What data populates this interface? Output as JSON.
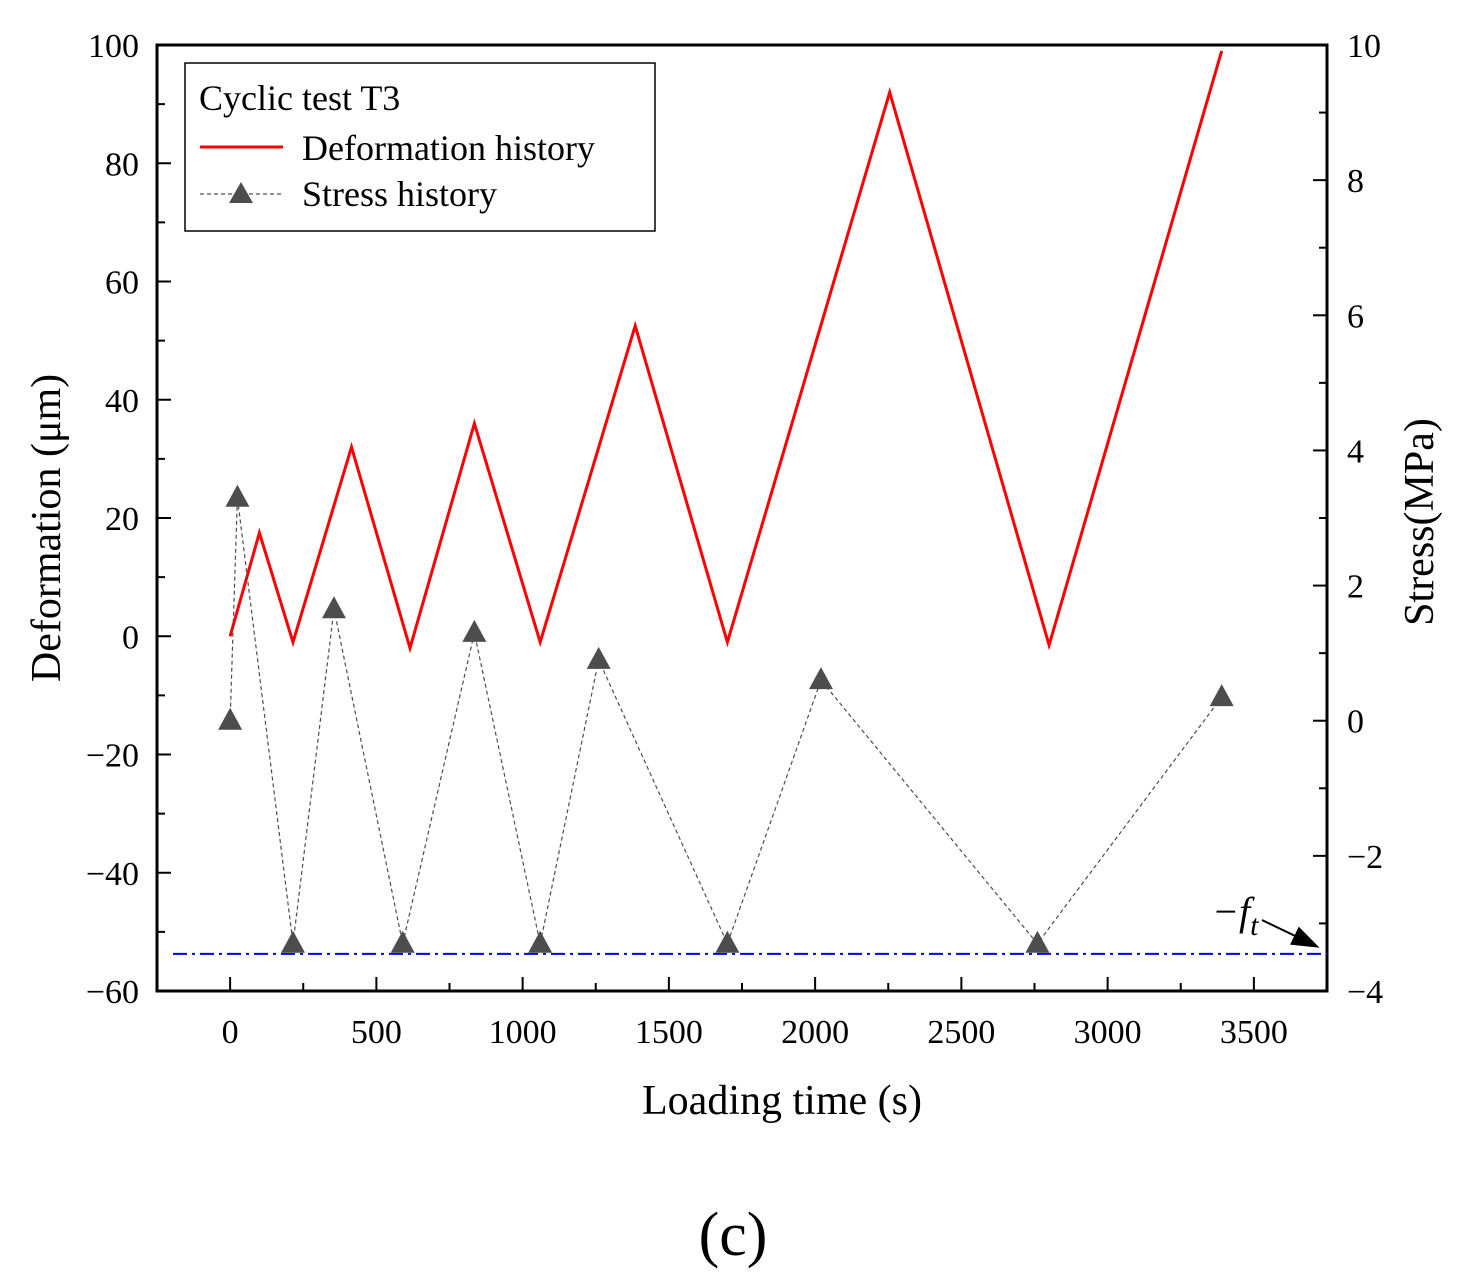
{
  "chart_data": {
    "type": "line",
    "title": "",
    "xlabel": "Loading time (s)",
    "ylabel": "Deformation (μm)",
    "y2label": "Stress(MPa)",
    "xlim": [
      -250,
      3750
    ],
    "ylim": [
      -60,
      100
    ],
    "y2lim": [
      -4,
      10
    ],
    "x_ticks": [
      0,
      500,
      1000,
      1500,
      2000,
      2500,
      3000,
      3500
    ],
    "y_ticks": [
      -60,
      -40,
      -20,
      0,
      20,
      40,
      60,
      80,
      100
    ],
    "y2_ticks": [
      -4,
      -2,
      0,
      2,
      4,
      6,
      8,
      10
    ],
    "legend_title": "Cyclic test T3",
    "legend_position": "top-left",
    "series": [
      {
        "name": "Deformation history",
        "axis": "left",
        "color": "#ff0000",
        "style": "solid",
        "x": [
          0,
          100,
          215,
          415,
          615,
          835,
          1060,
          1385,
          1700,
          2255,
          2800,
          3390
        ],
        "y": [
          0,
          17.5,
          -1,
          32,
          -2,
          36,
          -1,
          52.5,
          -1,
          92,
          -1.5,
          99
        ]
      },
      {
        "name": "Stress history",
        "axis": "right",
        "color": "#4d4d4d",
        "style": "dashed",
        "marker": "triangle",
        "x": [
          0,
          25,
          215,
          355,
          590,
          835,
          1060,
          1260,
          1700,
          2020,
          2760,
          3390
        ],
        "y": [
          0.0,
          3.3,
          -3.3,
          1.65,
          -3.3,
          1.3,
          -3.3,
          0.9,
          -3.3,
          0.6,
          -3.3,
          0.35
        ]
      }
    ],
    "reference_line": {
      "label_main": "−f",
      "label_sub": "t",
      "axis": "right",
      "y": -3.45,
      "color": "#0000ee",
      "style": "dash-dot"
    },
    "panel_label": "(c)"
  }
}
